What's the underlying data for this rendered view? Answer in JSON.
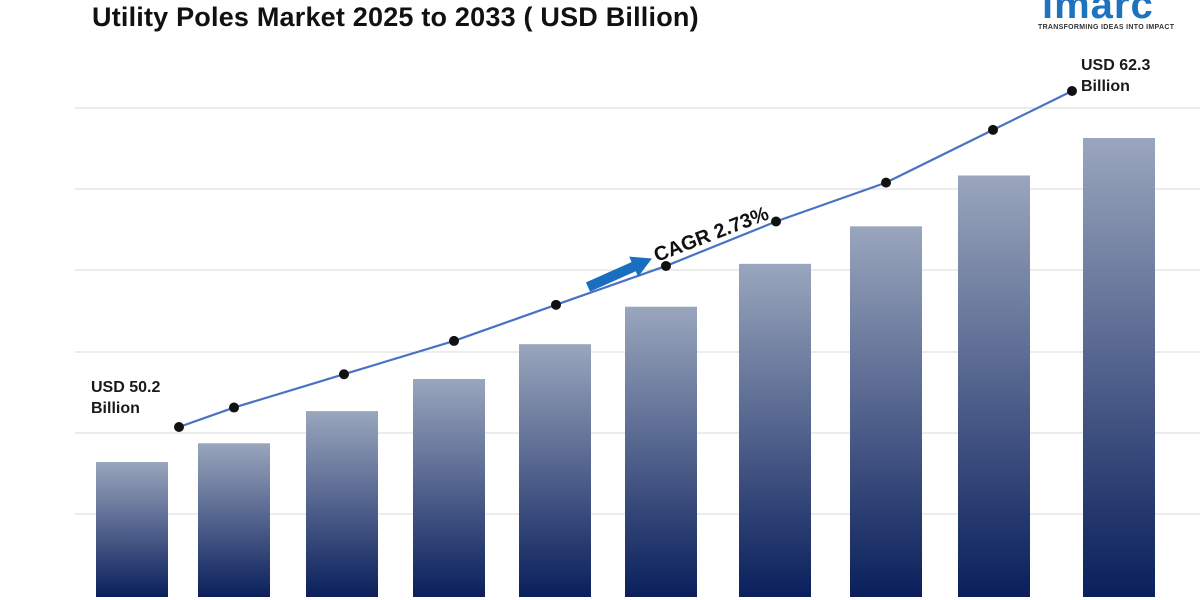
{
  "header": {
    "title": "Utility Poles Market 2025 to 2033 ( USD Billion)"
  },
  "logo": {
    "wordmark": "imarc",
    "tagline": "TRANSFORMING IDEAS INTO IMPACT",
    "color": "#1e73be"
  },
  "chart_data": {
    "type": "bar",
    "title": "Utility Poles Market 2025 to 2033 ( USD Billion)",
    "categories": [
      "",
      "",
      "",
      "",
      "",
      "",
      "",
      "",
      "",
      ""
    ],
    "series": [
      {
        "values": [
          50.2,
          50.9,
          52.1,
          53.3,
          54.6,
          56.0,
          57.6,
          59.0,
          60.9,
          62.3
        ]
      }
    ],
    "line_values": [
      50.2,
      50.9,
      52.1,
      53.3,
      54.6,
      56.0,
      57.6,
      59.0,
      60.9,
      62.3
    ],
    "annotations": {
      "start_line1": "USD 50.2",
      "start_line2": "Billion",
      "end_line1": "USD 62.3",
      "end_line2": "Billion",
      "cagr": "CAGR 2.73%"
    },
    "grid": true,
    "colors": {
      "bar_top": "#9aa6bd",
      "bar_bottom": "#0a1f5c",
      "line": "#4a72c4",
      "marker": "#111111",
      "arrow": "#1a6ec0",
      "grid": "#d9d9d9"
    }
  }
}
